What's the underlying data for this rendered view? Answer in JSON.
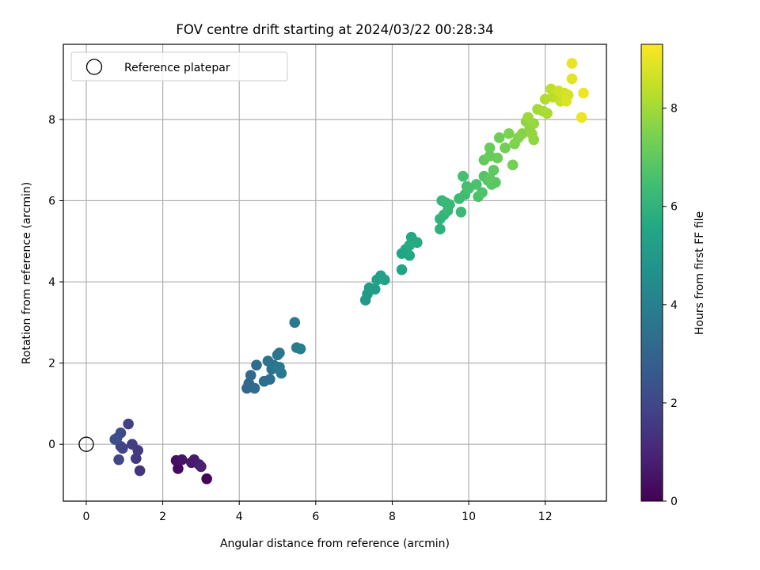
{
  "chart_data": {
    "type": "scatter",
    "title": "FOV centre drift starting at 2024/03/22 00:28:34",
    "xlabel": "Angular distance from reference (arcmin)",
    "ylabel": "Rotation from reference (arcmin)",
    "xlim": [
      -0.6,
      13.6
    ],
    "ylim": [
      -1.4,
      9.85
    ],
    "x_ticks": [
      0,
      2,
      4,
      6,
      8,
      10,
      12
    ],
    "y_ticks": [
      0,
      2,
      4,
      6,
      8
    ],
    "grid": true,
    "legend": {
      "placement": "top-left",
      "entries": [
        {
          "label": "Reference platepar",
          "marker": "open-circle"
        }
      ]
    },
    "reference_point": {
      "x": 0,
      "y": 0
    },
    "colorbar": {
      "label": "Hours from first FF file",
      "colormap": "viridis",
      "range": [
        0,
        9.3
      ],
      "ticks": [
        0,
        2,
        4,
        6,
        8
      ]
    },
    "series": [
      {
        "points": [
          {
            "x": 3.15,
            "y": -0.85,
            "c": 0.05
          },
          {
            "x": 2.4,
            "y": -0.6,
            "c": 0.25
          },
          {
            "x": 2.35,
            "y": -0.4,
            "c": 0.35
          },
          {
            "x": 2.5,
            "y": -0.38,
            "c": 0.5
          },
          {
            "x": 2.75,
            "y": -0.45,
            "c": 0.55
          },
          {
            "x": 2.82,
            "y": -0.38,
            "c": 0.65
          },
          {
            "x": 2.95,
            "y": -0.5,
            "c": 0.75
          },
          {
            "x": 3.0,
            "y": -0.55,
            "c": 0.85
          },
          {
            "x": 1.4,
            "y": -0.65,
            "c": 1.4
          },
          {
            "x": 1.3,
            "y": -0.35,
            "c": 1.55
          },
          {
            "x": 1.35,
            "y": -0.15,
            "c": 1.6
          },
          {
            "x": 1.2,
            "y": 0.0,
            "c": 1.7
          },
          {
            "x": 1.1,
            "y": 0.5,
            "c": 1.75
          },
          {
            "x": 0.95,
            "y": -0.1,
            "c": 1.85
          },
          {
            "x": 0.9,
            "y": -0.05,
            "c": 1.9
          },
          {
            "x": 0.85,
            "y": -0.38,
            "c": 1.95
          },
          {
            "x": 0.9,
            "y": 0.28,
            "c": 2.05
          },
          {
            "x": 0.8,
            "y": 0.15,
            "c": 2.15
          },
          {
            "x": 0.75,
            "y": 0.12,
            "c": 2.2
          },
          {
            "x": 4.2,
            "y": 1.38,
            "c": 3.1
          },
          {
            "x": 4.25,
            "y": 1.5,
            "c": 3.15
          },
          {
            "x": 4.4,
            "y": 1.38,
            "c": 3.2
          },
          {
            "x": 4.3,
            "y": 1.7,
            "c": 3.25
          },
          {
            "x": 4.45,
            "y": 1.95,
            "c": 3.3
          },
          {
            "x": 4.65,
            "y": 1.55,
            "c": 3.35
          },
          {
            "x": 4.8,
            "y": 1.6,
            "c": 3.4
          },
          {
            "x": 4.85,
            "y": 1.85,
            "c": 3.45
          },
          {
            "x": 4.75,
            "y": 2.05,
            "c": 3.5
          },
          {
            "x": 4.9,
            "y": 1.95,
            "c": 3.55
          },
          {
            "x": 5.0,
            "y": 2.2,
            "c": 3.6
          },
          {
            "x": 5.05,
            "y": 2.25,
            "c": 3.65
          },
          {
            "x": 5.1,
            "y": 1.75,
            "c": 3.7
          },
          {
            "x": 5.05,
            "y": 1.9,
            "c": 3.75
          },
          {
            "x": 5.45,
            "y": 3.0,
            "c": 3.8
          },
          {
            "x": 5.5,
            "y": 2.38,
            "c": 3.85
          },
          {
            "x": 5.6,
            "y": 2.35,
            "c": 3.9
          },
          {
            "x": 7.3,
            "y": 3.55,
            "c": 5.0
          },
          {
            "x": 7.35,
            "y": 3.7,
            "c": 5.05
          },
          {
            "x": 7.4,
            "y": 3.85,
            "c": 5.1
          },
          {
            "x": 7.55,
            "y": 3.82,
            "c": 5.15
          },
          {
            "x": 7.6,
            "y": 4.05,
            "c": 5.2
          },
          {
            "x": 7.7,
            "y": 4.15,
            "c": 5.25
          },
          {
            "x": 7.8,
            "y": 4.05,
            "c": 5.3
          },
          {
            "x": 8.25,
            "y": 4.3,
            "c": 5.4
          },
          {
            "x": 8.25,
            "y": 4.7,
            "c": 5.45
          },
          {
            "x": 8.35,
            "y": 4.8,
            "c": 5.5
          },
          {
            "x": 8.45,
            "y": 4.65,
            "c": 5.55
          },
          {
            "x": 8.5,
            "y": 5.1,
            "c": 5.6
          },
          {
            "x": 8.45,
            "y": 4.9,
            "c": 5.65
          },
          {
            "x": 8.65,
            "y": 4.97,
            "c": 5.7
          },
          {
            "x": 9.25,
            "y": 5.3,
            "c": 5.95
          },
          {
            "x": 9.25,
            "y": 5.55,
            "c": 6.0
          },
          {
            "x": 9.35,
            "y": 5.65,
            "c": 6.05
          },
          {
            "x": 9.3,
            "y": 6.0,
            "c": 6.1
          },
          {
            "x": 9.45,
            "y": 5.75,
            "c": 6.15
          },
          {
            "x": 9.5,
            "y": 5.9,
            "c": 6.2
          },
          {
            "x": 9.4,
            "y": 5.95,
            "c": 6.25
          },
          {
            "x": 9.8,
            "y": 5.72,
            "c": 6.3
          },
          {
            "x": 9.75,
            "y": 6.05,
            "c": 6.35
          },
          {
            "x": 9.9,
            "y": 6.15,
            "c": 6.4
          },
          {
            "x": 9.95,
            "y": 6.35,
            "c": 6.45
          },
          {
            "x": 9.85,
            "y": 6.6,
            "c": 6.5
          },
          {
            "x": 10.0,
            "y": 6.3,
            "c": 6.55
          },
          {
            "x": 10.2,
            "y": 6.4,
            "c": 6.6
          },
          {
            "x": 10.25,
            "y": 6.1,
            "c": 6.65
          },
          {
            "x": 10.35,
            "y": 6.2,
            "c": 6.7
          },
          {
            "x": 10.4,
            "y": 6.6,
            "c": 6.75
          },
          {
            "x": 10.5,
            "y": 6.5,
            "c": 6.8
          },
          {
            "x": 10.6,
            "y": 6.4,
            "c": 6.85
          },
          {
            "x": 10.7,
            "y": 6.45,
            "c": 6.9
          },
          {
            "x": 10.65,
            "y": 6.75,
            "c": 6.95
          },
          {
            "x": 10.55,
            "y": 6.55,
            "c": 7.0
          },
          {
            "x": 10.4,
            "y": 7.0,
            "c": 7.05
          },
          {
            "x": 10.55,
            "y": 7.1,
            "c": 7.1
          },
          {
            "x": 10.55,
            "y": 7.3,
            "c": 7.15
          },
          {
            "x": 10.75,
            "y": 7.05,
            "c": 7.2
          },
          {
            "x": 10.8,
            "y": 7.55,
            "c": 7.25
          },
          {
            "x": 10.95,
            "y": 7.3,
            "c": 7.3
          },
          {
            "x": 11.15,
            "y": 6.88,
            "c": 7.35
          },
          {
            "x": 11.05,
            "y": 7.65,
            "c": 7.45
          },
          {
            "x": 11.2,
            "y": 7.4,
            "c": 7.5
          },
          {
            "x": 11.3,
            "y": 7.55,
            "c": 7.55
          },
          {
            "x": 11.4,
            "y": 7.65,
            "c": 7.6
          },
          {
            "x": 11.5,
            "y": 7.95,
            "c": 7.65
          },
          {
            "x": 11.6,
            "y": 7.8,
            "c": 7.7
          },
          {
            "x": 11.7,
            "y": 7.5,
            "c": 7.75
          },
          {
            "x": 11.65,
            "y": 7.65,
            "c": 7.8
          },
          {
            "x": 11.7,
            "y": 7.9,
            "c": 7.85
          },
          {
            "x": 11.55,
            "y": 8.05,
            "c": 7.9
          },
          {
            "x": 11.8,
            "y": 8.25,
            "c": 8.0
          },
          {
            "x": 11.95,
            "y": 8.2,
            "c": 8.05
          },
          {
            "x": 12.05,
            "y": 8.15,
            "c": 8.1
          },
          {
            "x": 12.0,
            "y": 8.5,
            "c": 8.2
          },
          {
            "x": 12.2,
            "y": 8.55,
            "c": 8.3
          },
          {
            "x": 12.15,
            "y": 8.75,
            "c": 8.4
          },
          {
            "x": 12.4,
            "y": 8.45,
            "c": 8.5
          },
          {
            "x": 12.35,
            "y": 8.7,
            "c": 8.6
          },
          {
            "x": 12.5,
            "y": 8.65,
            "c": 8.65
          },
          {
            "x": 12.6,
            "y": 8.6,
            "c": 8.75
          },
          {
            "x": 12.55,
            "y": 8.45,
            "c": 8.8
          },
          {
            "x": 12.7,
            "y": 9.0,
            "c": 8.9
          },
          {
            "x": 12.7,
            "y": 9.38,
            "c": 9.0
          },
          {
            "x": 12.95,
            "y": 8.05,
            "c": 9.05
          },
          {
            "x": 13.0,
            "y": 8.65,
            "c": 9.1
          }
        ]
      }
    ]
  }
}
